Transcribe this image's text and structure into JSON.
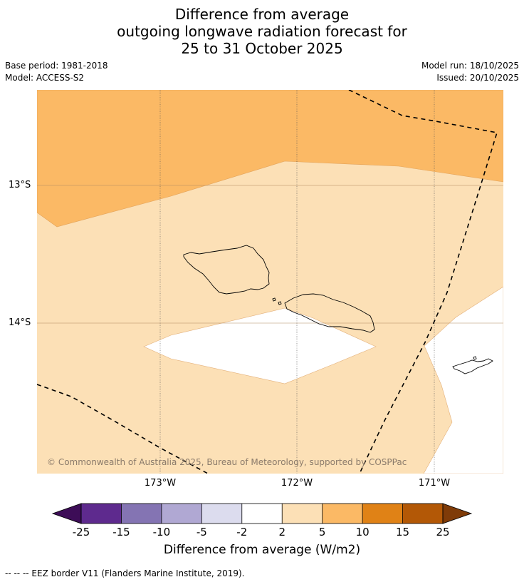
{
  "title": {
    "line1": "Difference from average",
    "line2": "outgoing longwave radiation forecast for",
    "line3": "25 to 31 October 2025"
  },
  "meta": {
    "base_period": "Base period: 1981-2018",
    "model": "Model: ACCESS-S2",
    "model_run": "Model run: 18/10/2025",
    "issued": "Issued: 20/10/2025"
  },
  "map": {
    "lat_labels": [
      "13°S",
      "14°S"
    ],
    "lon_labels": [
      "173°W",
      "172°W",
      "171°W"
    ],
    "credit": "© Commonwealth of Australia 2025, Bureau of Meteorology, supported by COSPPac",
    "colors": {
      "anomaly_2_to_5": "#fce0b6",
      "anomaly_5_to_10": "#fbb965",
      "neutral": "#ffffff",
      "coastline": "#000000",
      "eez_border": "#000000"
    }
  },
  "colorbar": {
    "ticks": [
      "-25",
      "-15",
      "-10",
      "-5",
      "-2",
      "2",
      "5",
      "10",
      "15",
      "25"
    ],
    "colors": [
      "#3d0d57",
      "#5e2a8e",
      "#8474b3",
      "#b0a8d3",
      "#dcdcee",
      "#ffffff",
      "#fce0b6",
      "#fbb965",
      "#e08216",
      "#b35806",
      "#7f3b08"
    ],
    "label": "Difference from average (W/m2)"
  },
  "footnote": "--  --  -- EEZ border V11 (Flanders Marine Institute, 2019)."
}
